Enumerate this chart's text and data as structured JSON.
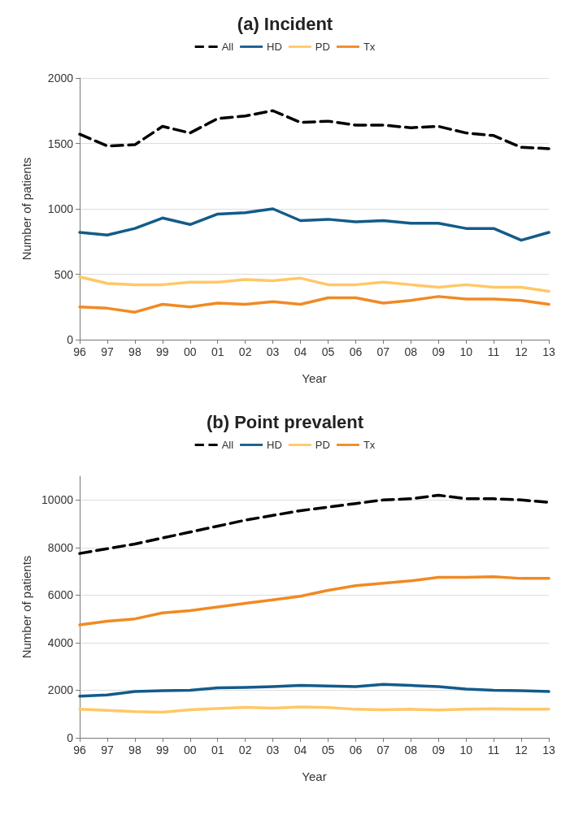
{
  "chart_data": [
    {
      "type": "line",
      "title": "(a) Incident",
      "xlabel": "Year",
      "ylabel": "Number of patients",
      "categories": [
        "96",
        "97",
        "98",
        "99",
        "00",
        "01",
        "02",
        "03",
        "04",
        "05",
        "06",
        "07",
        "08",
        "09",
        "10",
        "11",
        "12",
        "13"
      ],
      "ylim": [
        0,
        2000
      ],
      "yticks": [
        0,
        500,
        1000,
        1500,
        2000
      ],
      "grid": "y",
      "legend": "top",
      "marker": "none",
      "series": [
        {
          "name": "All",
          "color": "#000000",
          "line_style": "dashed",
          "values": [
            1570,
            1480,
            1490,
            1630,
            1580,
            1690,
            1710,
            1750,
            1660,
            1670,
            1640,
            1640,
            1620,
            1630,
            1580,
            1560,
            1470,
            1460
          ]
        },
        {
          "name": "HD",
          "color": "#135b89",
          "values": [
            820,
            800,
            850,
            930,
            880,
            960,
            970,
            1000,
            910,
            920,
            900,
            910,
            890,
            890,
            850,
            850,
            760,
            820
          ]
        },
        {
          "name": "PD",
          "color": "#ffc866",
          "values": [
            480,
            430,
            420,
            420,
            440,
            440,
            460,
            450,
            470,
            420,
            420,
            440,
            420,
            400,
            420,
            400,
            400,
            370
          ]
        },
        {
          "name": "Tx",
          "color": "#f08a24",
          "values": [
            250,
            240,
            210,
            270,
            250,
            280,
            270,
            290,
            270,
            320,
            320,
            280,
            300,
            330,
            310,
            310,
            300,
            270
          ]
        }
      ]
    },
    {
      "type": "line",
      "title": "(b) Point prevalent",
      "xlabel": "Year",
      "ylabel": "Number of patients",
      "categories": [
        "96",
        "97",
        "98",
        "99",
        "00",
        "01",
        "02",
        "03",
        "04",
        "05",
        "06",
        "07",
        "08",
        "09",
        "10",
        "11",
        "12",
        "13"
      ],
      "ylim": [
        0,
        11000
      ],
      "yticks": [
        0,
        2000,
        4000,
        6000,
        8000,
        10000
      ],
      "grid": "y",
      "legend": "top",
      "marker": "none",
      "series": [
        {
          "name": "All",
          "color": "#000000",
          "line_style": "dashed",
          "values": [
            7750,
            7950,
            8150,
            8400,
            8650,
            8900,
            9150,
            9350,
            9550,
            9700,
            9850,
            10000,
            10050,
            10200,
            10050,
            10050,
            10000,
            9900
          ]
        },
        {
          "name": "HD",
          "color": "#135b89",
          "values": [
            1750,
            1800,
            1950,
            1980,
            2000,
            2100,
            2120,
            2150,
            2200,
            2180,
            2150,
            2250,
            2200,
            2150,
            2050,
            2000,
            1980,
            1950
          ]
        },
        {
          "name": "PD",
          "color": "#ffc866",
          "values": [
            1200,
            1150,
            1100,
            1080,
            1180,
            1230,
            1280,
            1250,
            1300,
            1270,
            1200,
            1180,
            1200,
            1170,
            1200,
            1220,
            1200,
            1200
          ]
        },
        {
          "name": "Tx",
          "color": "#f08a24",
          "values": [
            4750,
            4900,
            5000,
            5250,
            5350,
            5500,
            5650,
            5800,
            5950,
            6200,
            6400,
            6500,
            6600,
            6750,
            6750,
            6770,
            6700,
            6700
          ]
        }
      ]
    }
  ]
}
